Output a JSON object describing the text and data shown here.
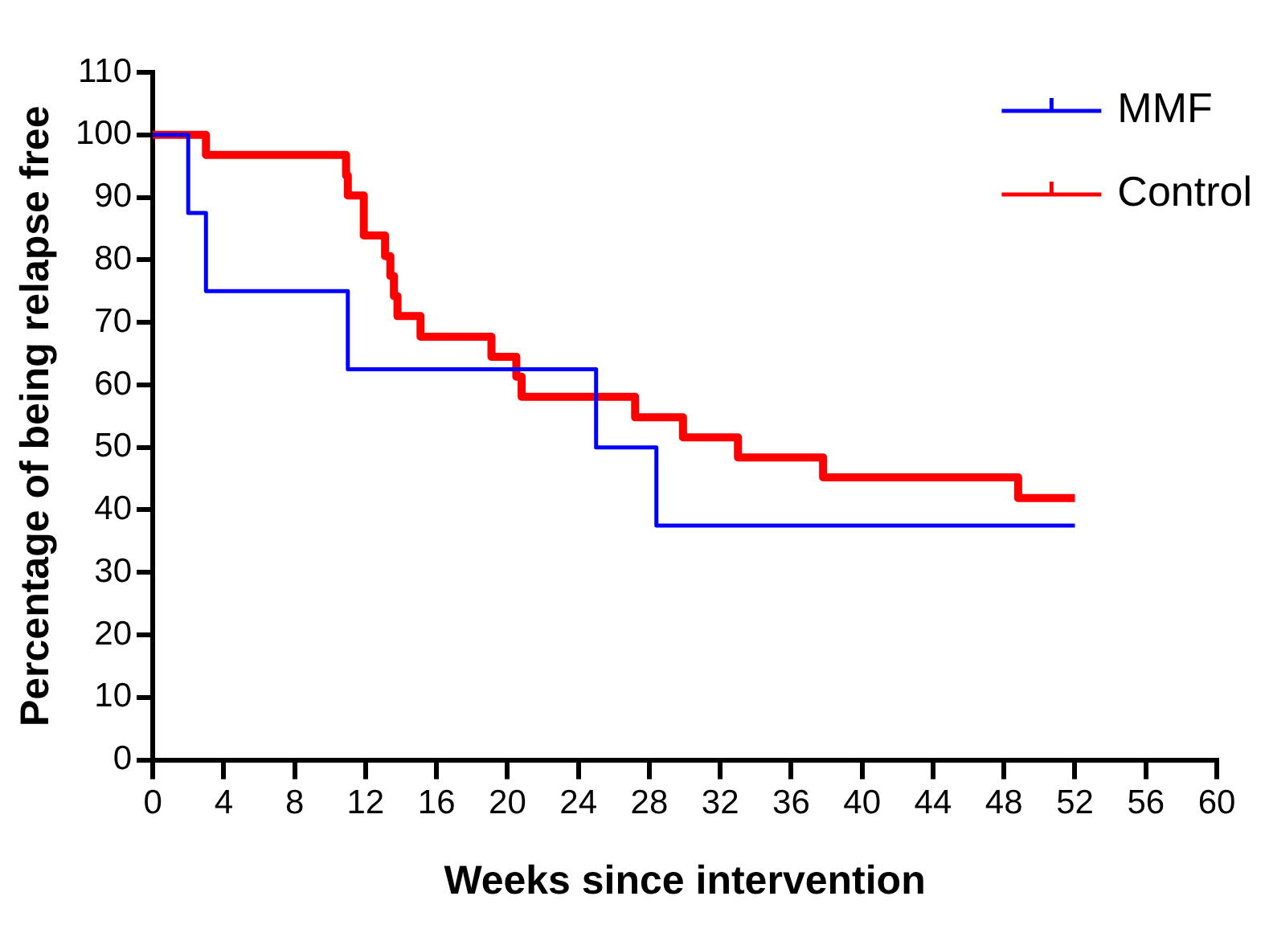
{
  "chart_data": {
    "type": "step",
    "xlabel": "Weeks since intervention",
    "ylabel": "Percentage of being relapse free",
    "xlim": [
      0,
      60
    ],
    "xticks": [
      0,
      4,
      8,
      12,
      16,
      20,
      24,
      28,
      32,
      36,
      40,
      44,
      48,
      52,
      56,
      60
    ],
    "ylim": [
      0,
      110
    ],
    "yticks": [
      0,
      10,
      20,
      30,
      40,
      50,
      60,
      70,
      80,
      90,
      100,
      110
    ],
    "grid": false,
    "legend": "top right",
    "marker": "none",
    "line_style": "solid",
    "series": [
      {
        "name": "MMF",
        "color": "#0000ff",
        "x": [
          0,
          2,
          3,
          11,
          25,
          28.4,
          52
        ],
        "values": [
          100,
          87.5,
          75,
          62.5,
          50,
          37.5,
          37.5
        ]
      },
      {
        "name": "Control",
        "color": "#ff0000",
        "x": [
          0,
          3,
          10.9,
          11,
          11.9,
          13.1,
          13.4,
          13.6,
          13.8,
          15.1,
          19.1,
          20.5,
          20.8,
          27.2,
          29.9,
          33,
          37.8,
          48.8,
          52
        ],
        "values": [
          100,
          96.8,
          93.5,
          90.3,
          83.9,
          80.6,
          77.4,
          74.2,
          71,
          67.7,
          64.5,
          61.3,
          58.1,
          54.8,
          51.6,
          48.4,
          45.2,
          41.9,
          41.9
        ]
      }
    ]
  }
}
